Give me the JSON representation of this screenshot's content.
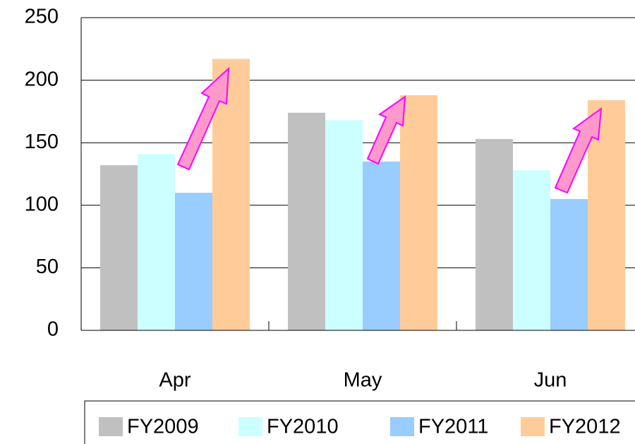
{
  "chart_data": {
    "type": "bar",
    "categories": [
      "Apr",
      "May",
      "Jun"
    ],
    "series": [
      {
        "name": "FY2009",
        "color": "#c0c0c0",
        "values": [
          132,
          174,
          153
        ]
      },
      {
        "name": "FY2010",
        "color": "#ccffff",
        "values": [
          141,
          168,
          128
        ]
      },
      {
        "name": "FY2011",
        "color": "#99ccff",
        "values": [
          110,
          135,
          105
        ]
      },
      {
        "name": "FY2012",
        "color": "#ffcc99",
        "values": [
          217,
          188,
          184
        ]
      }
    ],
    "ylim": [
      0,
      250
    ],
    "yticks": [
      0,
      50,
      100,
      150,
      200,
      250
    ],
    "grid": true,
    "legend": "bottom"
  }
}
